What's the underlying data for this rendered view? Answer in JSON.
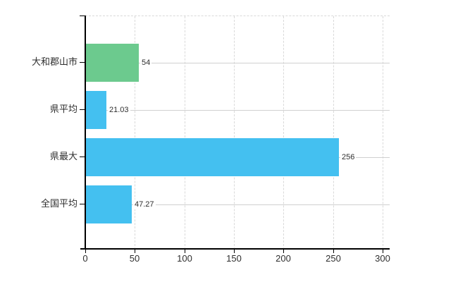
{
  "chart_data": {
    "type": "bar",
    "orientation": "horizontal",
    "title": "",
    "categories": [
      "大和郡山市",
      "県平均",
      "県最大",
      "全国平均"
    ],
    "values": [
      54,
      21.03,
      256,
      47.27
    ],
    "value_labels": [
      "54",
      "21.03",
      "256",
      "47.27"
    ],
    "bar_colors": [
      "#6cca8e",
      "#44c0f0",
      "#44c0f0",
      "#44c0f0"
    ],
    "xlim": [
      0,
      300
    ],
    "x_ticks": [
      0,
      50,
      100,
      150,
      200,
      250,
      300
    ],
    "x_tick_labels": [
      "0",
      "50",
      "100",
      "150",
      "200",
      "250",
      "300"
    ],
    "xlabel": "",
    "ylabel": "",
    "grid": "vertical dashed at x ticks, horizontal solid at category centers",
    "legend_position": "none"
  },
  "colors": {
    "background": "#ffffff",
    "bar_green": "#6cca8e",
    "bar_blue": "#44c0f0",
    "vgrid": "#d9d9d9",
    "row_line": "#d0d0d0",
    "axis": "#000000",
    "text": "#2e2e2e"
  }
}
